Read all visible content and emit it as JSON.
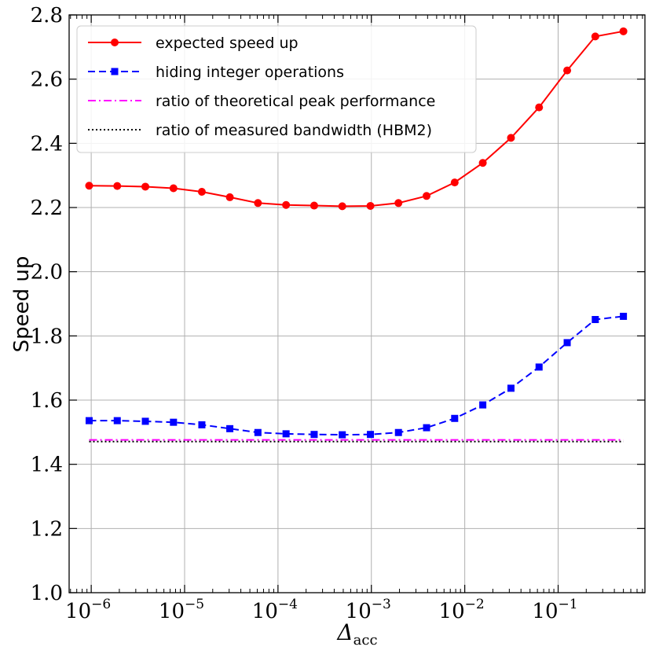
{
  "chart_data": {
    "type": "line",
    "title": "",
    "xlabel": "Δ",
    "xlabel_sub": "acc",
    "ylabel": "Speed up",
    "xscale": "log",
    "xlim": [
      5.8e-07,
      0.85
    ],
    "ylim": [
      1.0,
      2.8
    ],
    "grid": true,
    "legend_position": "top-left",
    "x_ticks": [
      {
        "value": 1e-06,
        "base": "10",
        "exp": "−6"
      },
      {
        "value": 1e-05,
        "base": "10",
        "exp": "−5"
      },
      {
        "value": 0.0001,
        "base": "10",
        "exp": "−4"
      },
      {
        "value": 0.001,
        "base": "10",
        "exp": "−3"
      },
      {
        "value": 0.01,
        "base": "10",
        "exp": "−2"
      },
      {
        "value": 0.1,
        "base": "10",
        "exp": "−1"
      }
    ],
    "y_ticks": [
      {
        "value": 1.0,
        "label": "1.0"
      },
      {
        "value": 1.2,
        "label": "1.2"
      },
      {
        "value": 1.4,
        "label": "1.4"
      },
      {
        "value": 1.6,
        "label": "1.6"
      },
      {
        "value": 1.8,
        "label": "1.8"
      },
      {
        "value": 2.0,
        "label": "2.0"
      },
      {
        "value": 2.2,
        "label": "2.2"
      },
      {
        "value": 2.4,
        "label": "2.4"
      },
      {
        "value": 2.6,
        "label": "2.6"
      },
      {
        "value": 2.8,
        "label": "2.8"
      }
    ],
    "x": [
      9.5e-07,
      1.9e-06,
      3.8e-06,
      7.6e-06,
      1.53e-05,
      3.05e-05,
      6.1e-05,
      0.000122,
      0.000244,
      0.000488,
      0.000977,
      0.00195,
      0.0039,
      0.0078,
      0.0156,
      0.03125,
      0.0625,
      0.125,
      0.25,
      0.5
    ],
    "series": [
      {
        "name": "expected speed up",
        "color": "#ff0000",
        "dash": "solid",
        "marker": "circle",
        "values": [
          2.268,
          2.267,
          2.265,
          2.26,
          2.249,
          2.232,
          2.214,
          2.208,
          2.206,
          2.204,
          2.205,
          2.214,
          2.236,
          2.278,
          2.339,
          2.417,
          2.512,
          2.627,
          2.733,
          2.749
        ]
      },
      {
        "name": "hiding integer operations",
        "color": "#0000ff",
        "dash": "dashed",
        "marker": "square",
        "values": [
          1.536,
          1.536,
          1.534,
          1.531,
          1.523,
          1.511,
          1.499,
          1.495,
          1.493,
          1.492,
          1.493,
          1.499,
          1.514,
          1.543,
          1.585,
          1.637,
          1.703,
          1.779,
          1.851,
          1.861
        ]
      },
      {
        "name": "ratio of theoretical peak performance",
        "color": "#ff00ff",
        "dash": "dashdot",
        "marker": "none",
        "constant": 1.476
      },
      {
        "name": "ratio of measured bandwidth (HBM2)",
        "color": "#000000",
        "dash": "dotted",
        "marker": "none",
        "constant": 1.471
      }
    ]
  }
}
